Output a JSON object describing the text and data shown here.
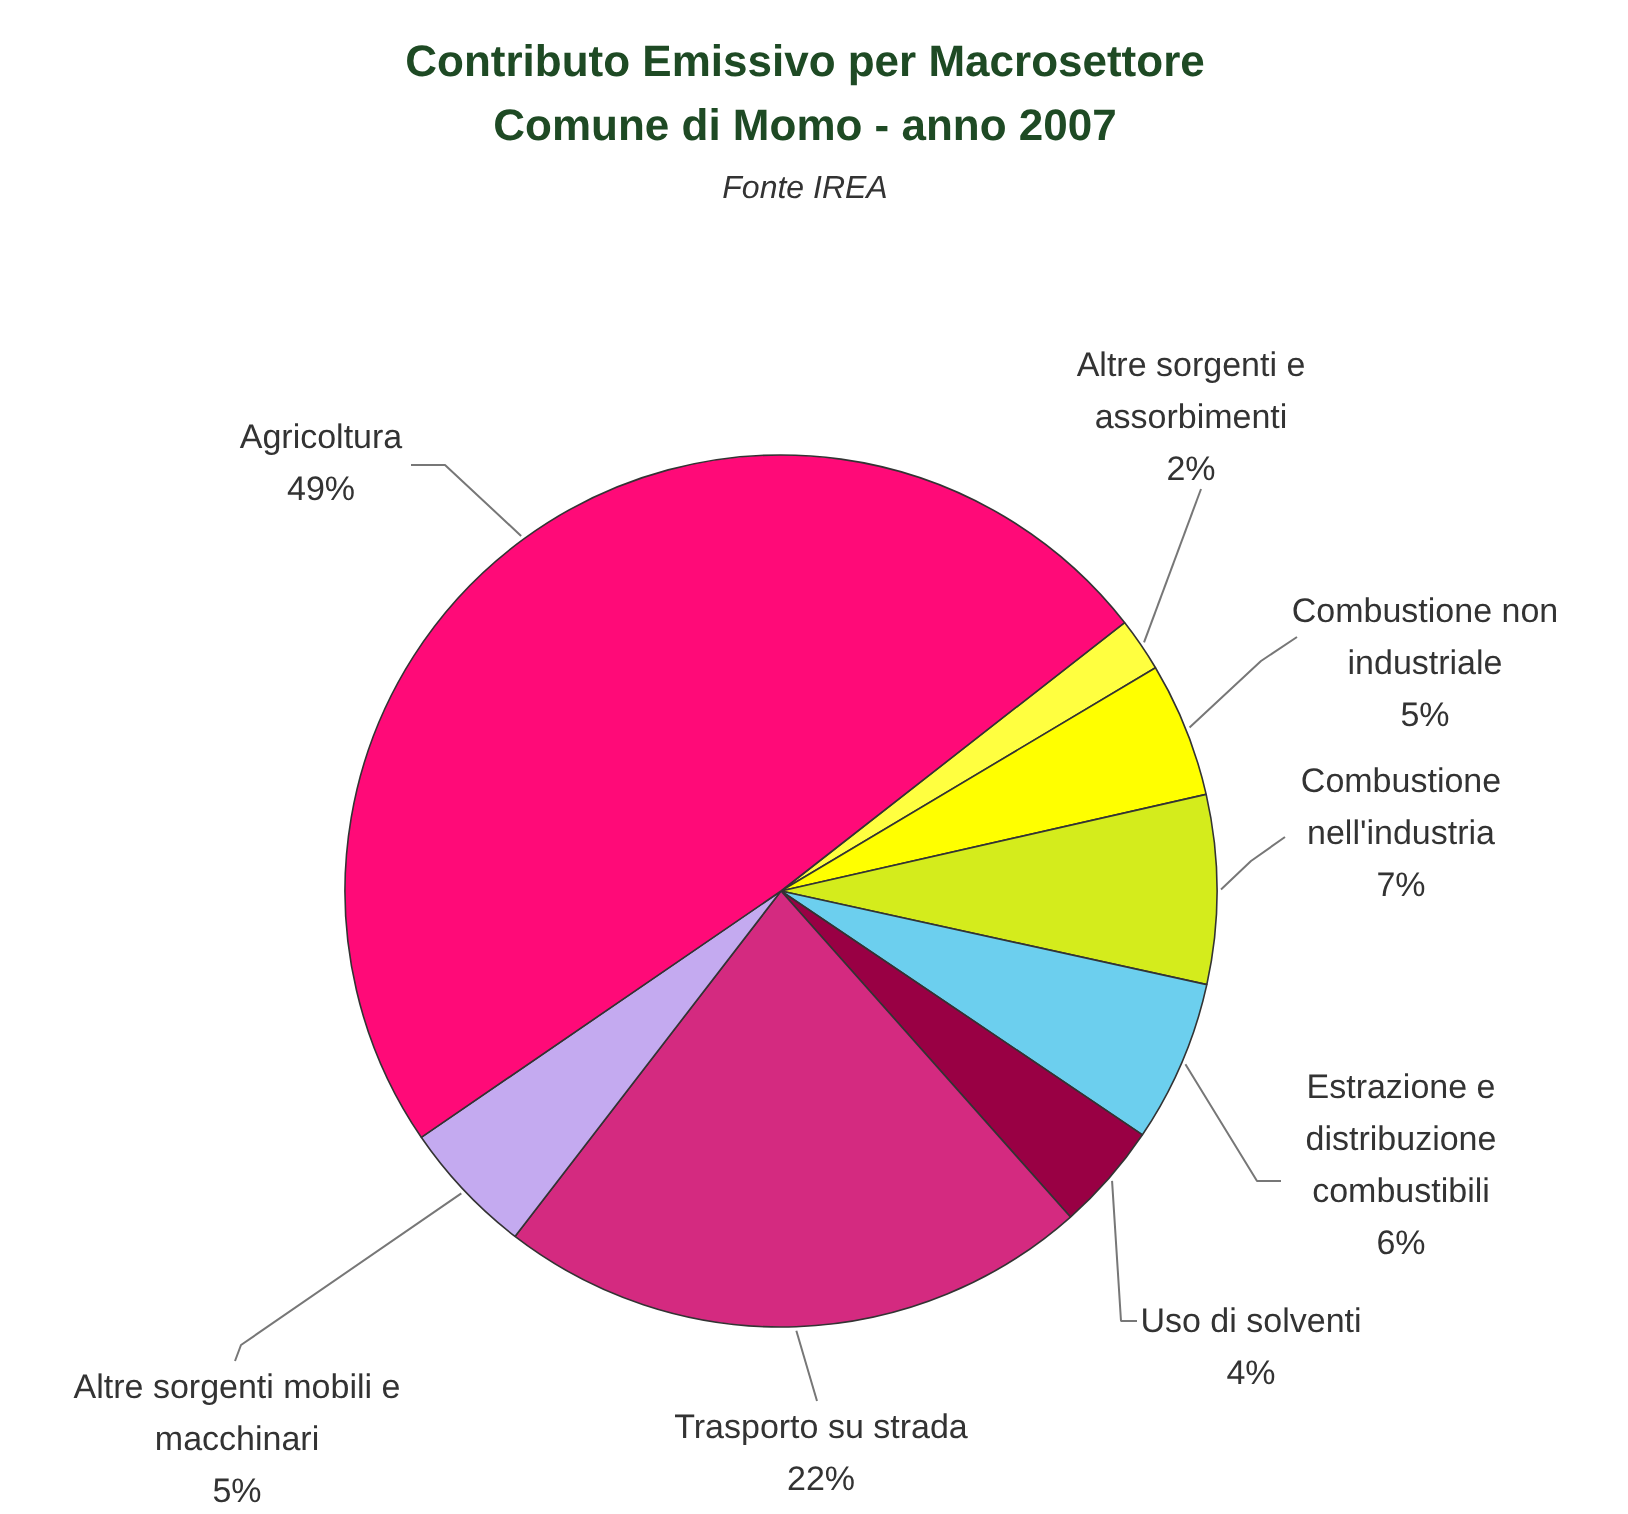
{
  "chart_data": {
    "type": "pie",
    "title": "Contributo Emissivo per Macrosettore\nComune di Momo - anno 2007",
    "subtitle": "Fonte IREA",
    "categories": [
      "Altre sorgenti e assorbimenti",
      "Combustione non industriale",
      "Combustione nell'industria",
      "Estrazione e distribuzione combustibili",
      "Uso di solventi",
      "Trasporto su strada",
      "Altre sorgenti mobili e macchinari",
      "Agricoltura"
    ],
    "values": [
      2,
      5,
      7,
      6,
      4,
      22,
      5,
      49
    ],
    "value_labels": [
      "2%",
      "5%",
      "7%",
      "6%",
      "4%",
      "22%",
      "5%",
      "49%"
    ],
    "colors": [
      "#ffff40",
      "#ffff00",
      "#d4ec1c",
      "#6ccfee",
      "#990044",
      "#d42a80",
      "#c4aaf0",
      "#ff0a78"
    ]
  }
}
